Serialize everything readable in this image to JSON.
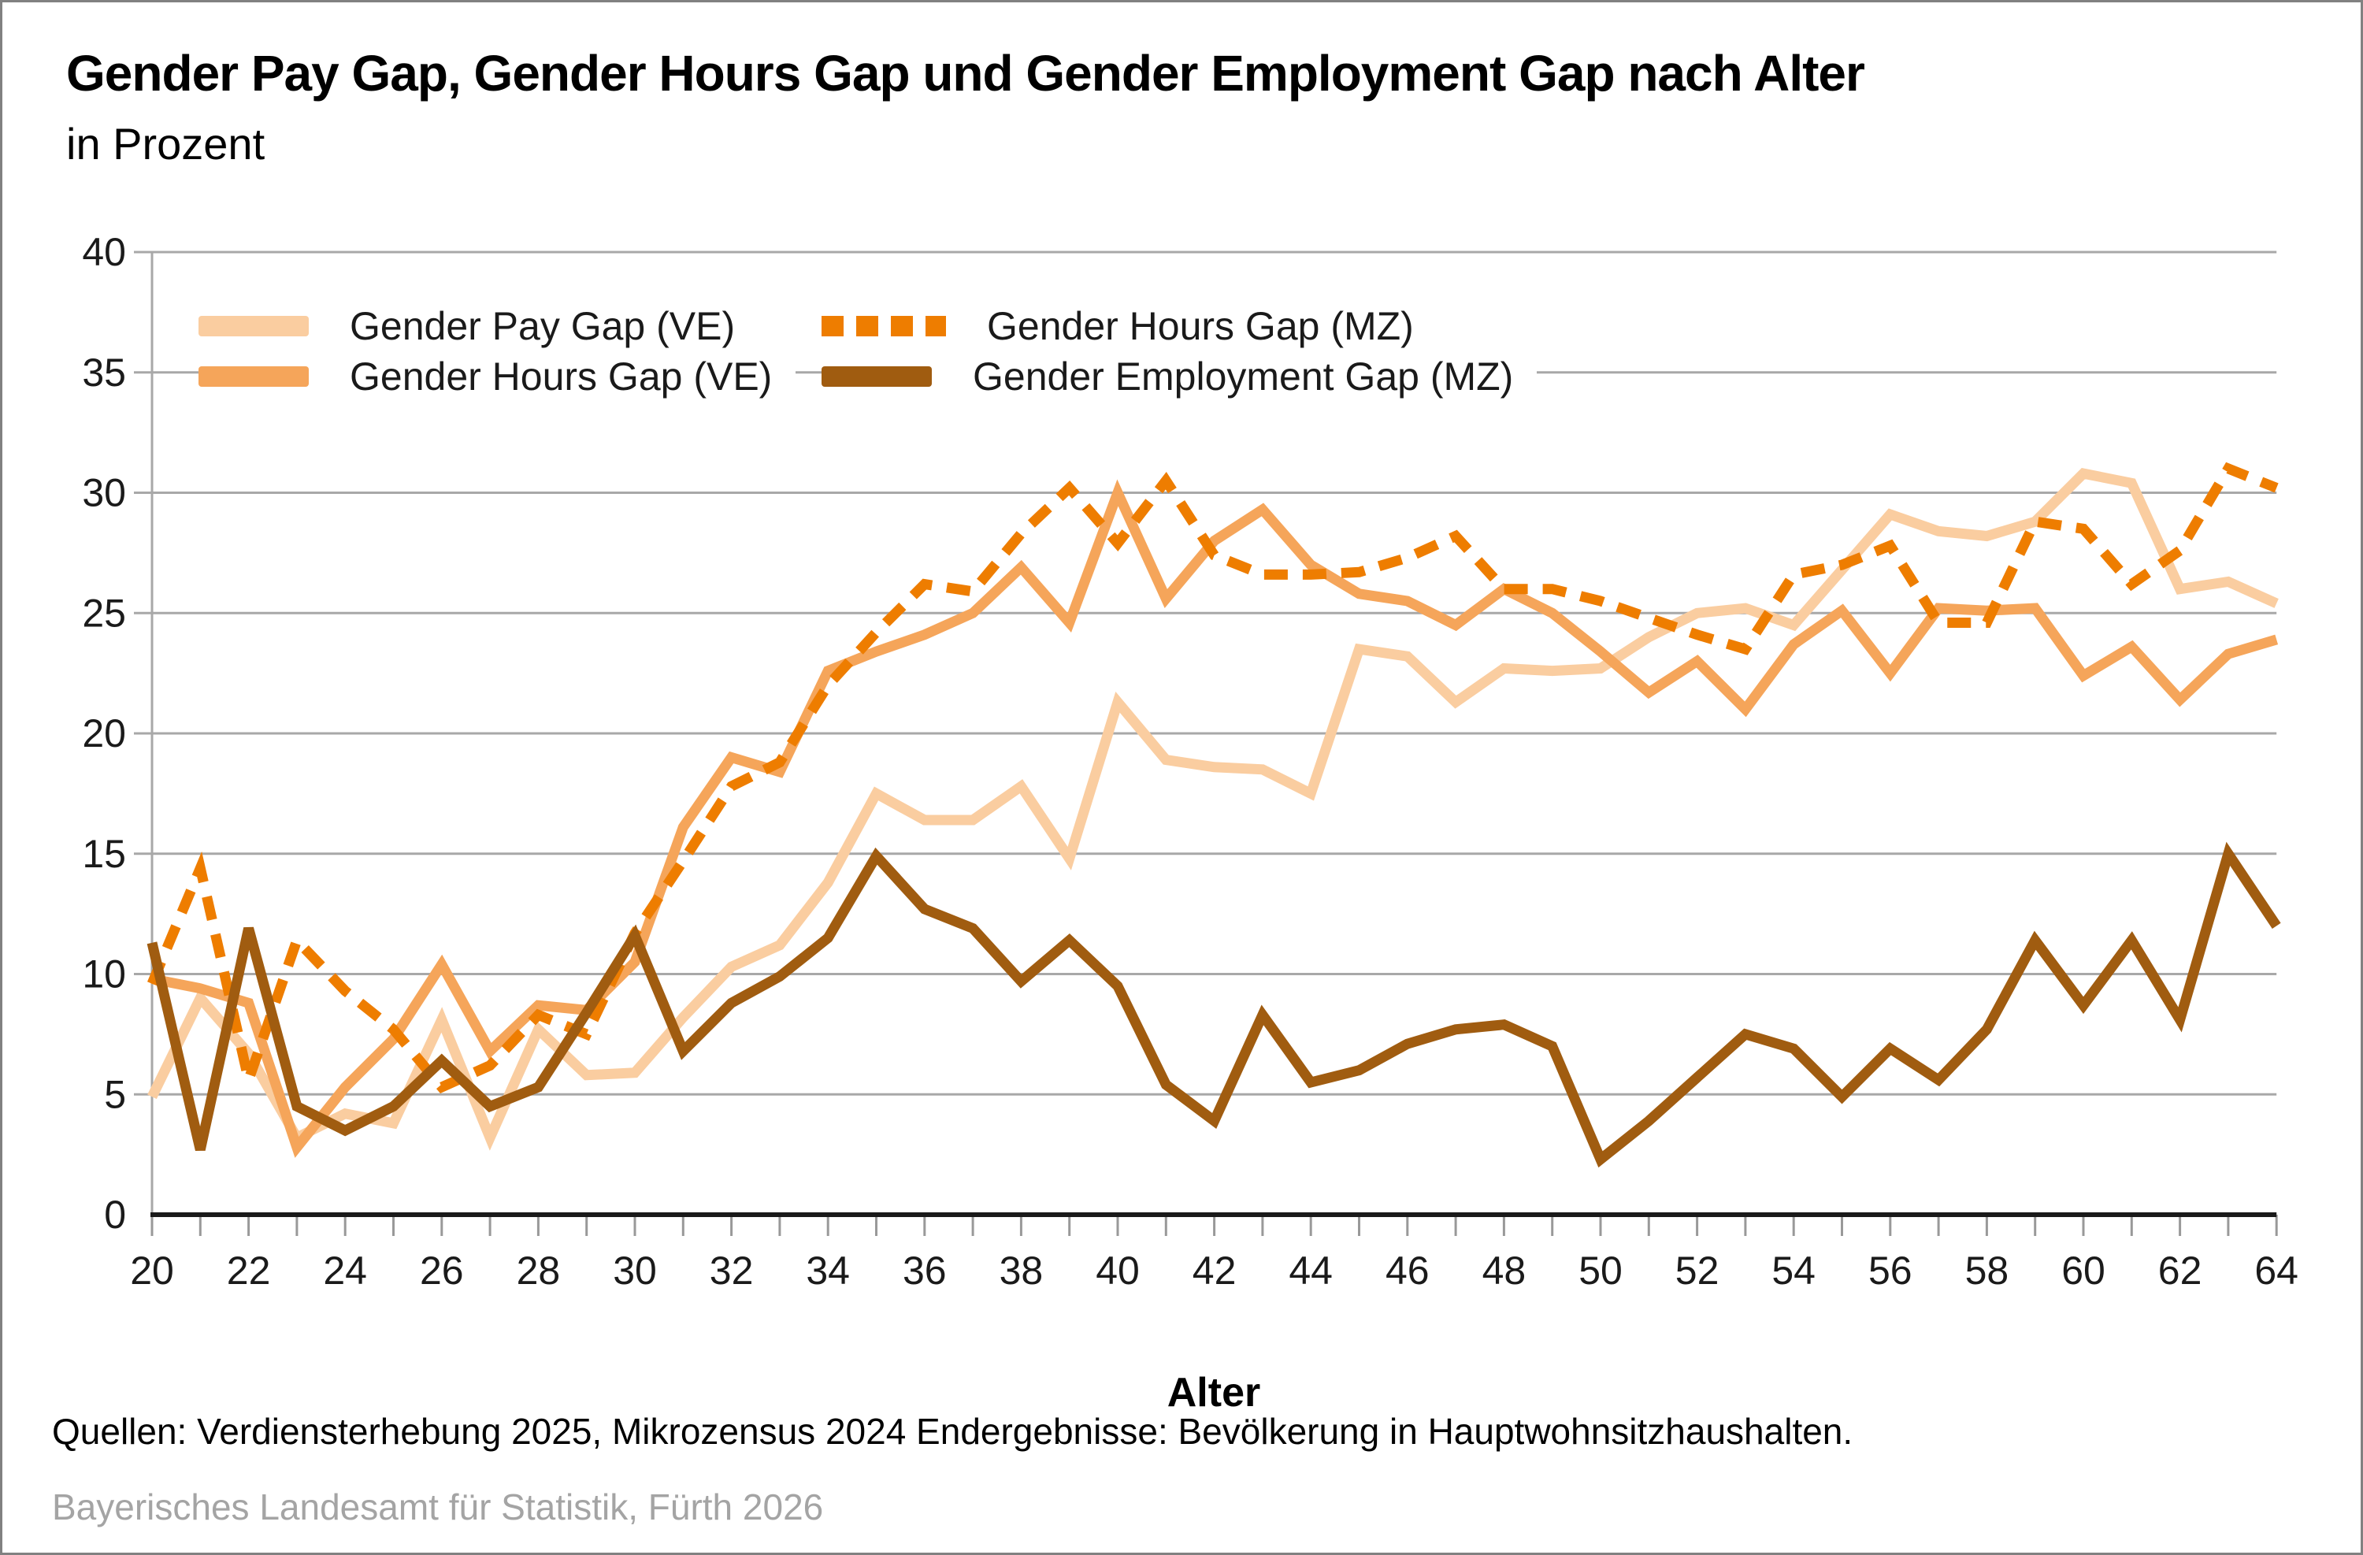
{
  "header": {
    "title": "Gender Pay Gap, Gender Hours Gap und Gender Employment Gap nach Alter",
    "subtitle": "in Prozent"
  },
  "chart_data": {
    "type": "line",
    "xlabel": "Alter",
    "x_start": 20,
    "x_end": 64,
    "x_label_every": 2,
    "ylim": [
      0,
      40
    ],
    "ytick_step": 5,
    "grid": true,
    "legend_position": "top-left-two-columns",
    "axis_colors": {
      "grid": "#a8a8a8",
      "axis": "#1a1a1a",
      "tick": "#999999",
      "label": "#1a1a1a"
    },
    "series": [
      {
        "name": "Gender Pay Gap (VE)",
        "style": "solid",
        "color": "#facda0",
        "values": [
          4.9,
          9.0,
          6.7,
          3.2,
          4.2,
          3.8,
          8.1,
          3.2,
          7.7,
          5.8,
          5.9,
          8.2,
          10.3,
          11.2,
          13.8,
          17.5,
          16.4,
          16.4,
          17.8,
          14.8,
          21.3,
          18.9,
          18.6,
          18.5,
          17.5,
          23.5,
          23.2,
          21.3,
          22.7,
          22.6,
          22.7,
          24.0,
          25.0,
          25.2,
          24.5,
          26.8,
          29.1,
          28.4,
          28.2,
          28.8,
          30.8,
          30.4,
          26.0,
          26.3,
          25.4
        ]
      },
      {
        "name": "Gender Hours Gap (VE)",
        "style": "solid",
        "color": "#f5a55a",
        "values": [
          9.8,
          9.4,
          8.8,
          2.8,
          5.3,
          7.3,
          10.4,
          6.8,
          8.7,
          8.5,
          10.5,
          16.1,
          19.0,
          18.4,
          22.6,
          23.4,
          24.1,
          25.0,
          26.9,
          24.6,
          30.0,
          25.6,
          28.0,
          29.3,
          27.0,
          25.8,
          25.5,
          24.5,
          26.0,
          25.0,
          23.4,
          21.7,
          23.0,
          21.0,
          23.7,
          25.1,
          22.5,
          25.2,
          25.1,
          25.2,
          22.4,
          23.6,
          21.4,
          23.3,
          23.9
        ]
      },
      {
        "name": "Gender Hours Gap (MZ)",
        "style": "dashed",
        "color": "#ee7d00",
        "values": [
          9.6,
          14.4,
          5.6,
          11.4,
          9.3,
          7.7,
          5.3,
          6.2,
          8.3,
          7.5,
          11.7,
          14.7,
          17.8,
          18.8,
          22.0,
          24.2,
          26.2,
          25.9,
          28.3,
          30.2,
          27.9,
          30.5,
          27.4,
          26.6,
          26.6,
          26.7,
          27.3,
          28.2,
          26.0,
          26.0,
          25.5,
          24.8,
          24.1,
          23.5,
          26.6,
          27.0,
          27.8,
          24.6,
          24.6,
          28.8,
          28.5,
          26.2,
          27.6,
          31.0,
          30.2
        ]
      },
      {
        "name": "Gender Employment Gap (MZ)",
        "style": "solid",
        "color": "#a05c10",
        "values": [
          11.3,
          2.7,
          11.9,
          4.5,
          3.5,
          4.5,
          6.4,
          4.5,
          5.3,
          8.4,
          11.6,
          6.8,
          8.8,
          9.9,
          11.5,
          14.9,
          12.7,
          11.9,
          9.7,
          11.4,
          9.5,
          5.4,
          3.9,
          8.3,
          5.5,
          6.0,
          7.1,
          7.7,
          7.9,
          7.0,
          2.3,
          3.9,
          5.7,
          7.5,
          6.9,
          4.9,
          6.9,
          5.6,
          7.7,
          11.4,
          8.7,
          11.4,
          8.1,
          15.0,
          12.0
        ]
      }
    ]
  },
  "footer": {
    "source": "Quellen: Verdiensterhebung 2025, Mikrozensus 2024 Endergebnisse: Bevölkerung in Hauptwohnsitzhaushalten.",
    "credit": "Bayerisches Landesamt für Statistik, Fürth 2026"
  }
}
